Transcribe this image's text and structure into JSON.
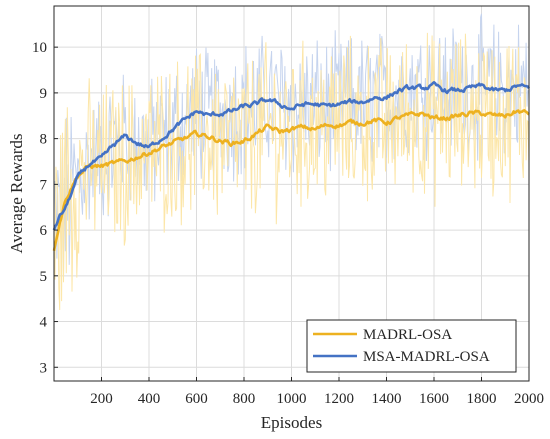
{
  "chart_data": {
    "type": "line",
    "xlabel": "Episodes",
    "ylabel": "Average Rewards",
    "xlim": [
      0,
      2000
    ],
    "ylim": [
      2.7,
      10.9
    ],
    "xticks": [
      "200",
      "400",
      "600",
      "800",
      "1000",
      "1200",
      "1400",
      "1600",
      "1800",
      "2000"
    ],
    "yticks": [
      "3",
      "4",
      "5",
      "6",
      "7",
      "8",
      "9",
      "10"
    ],
    "grid": true,
    "legend_position": "bottom-right",
    "series": [
      {
        "name": "MADRL-OSA",
        "color": "#EDB120",
        "raw_color": "#FCE6A8",
        "raw_spread": 1.6,
        "x": [
          0,
          20,
          50,
          100,
          150,
          200,
          250,
          300,
          350,
          400,
          450,
          500,
          550,
          600,
          650,
          700,
          750,
          800,
          850,
          900,
          950,
          1000,
          1050,
          1100,
          1150,
          1200,
          1250,
          1300,
          1350,
          1400,
          1450,
          1500,
          1550,
          1600,
          1650,
          1700,
          1750,
          1800,
          1850,
          1900,
          1950,
          2000
        ],
        "y": [
          5.55,
          6.1,
          6.7,
          7.2,
          7.4,
          7.4,
          7.45,
          7.5,
          7.6,
          7.7,
          7.8,
          7.9,
          8.0,
          8.1,
          8.05,
          7.95,
          7.9,
          7.95,
          8.1,
          8.25,
          8.15,
          8.2,
          8.25,
          8.2,
          8.3,
          8.3,
          8.35,
          8.35,
          8.4,
          8.35,
          8.45,
          8.5,
          8.55,
          8.45,
          8.45,
          8.5,
          8.55,
          8.55,
          8.5,
          8.5,
          8.6,
          8.55
        ]
      },
      {
        "name": "MSA-MADRL-OSA",
        "color": "#4472C4",
        "raw_color": "#C6D4EE",
        "raw_spread": 1.3,
        "x": [
          0,
          20,
          50,
          100,
          150,
          200,
          250,
          300,
          350,
          400,
          450,
          500,
          550,
          600,
          650,
          700,
          750,
          800,
          850,
          900,
          950,
          1000,
          1050,
          1100,
          1150,
          1200,
          1250,
          1300,
          1350,
          1400,
          1450,
          1500,
          1550,
          1600,
          1650,
          1700,
          1750,
          1800,
          1850,
          1900,
          1950,
          2000
        ],
        "y": [
          6.0,
          6.25,
          6.5,
          7.15,
          7.45,
          7.55,
          7.85,
          8.05,
          7.9,
          7.8,
          8.0,
          8.2,
          8.4,
          8.6,
          8.5,
          8.55,
          8.6,
          8.7,
          8.75,
          8.85,
          8.75,
          8.65,
          8.75,
          8.75,
          8.7,
          8.75,
          8.8,
          8.8,
          8.9,
          8.9,
          9.05,
          9.1,
          9.1,
          9.15,
          9.05,
          9.05,
          9.1,
          9.15,
          9.05,
          9.05,
          9.15,
          9.1
        ]
      }
    ]
  }
}
